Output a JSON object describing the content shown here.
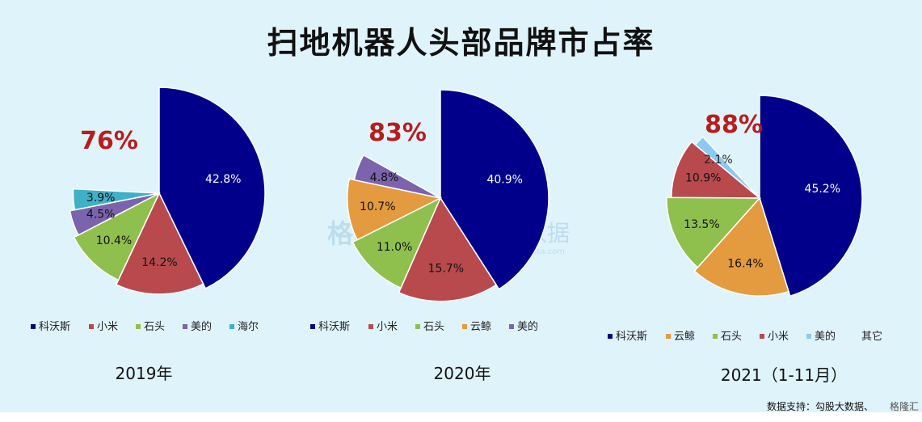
{
  "title": "扫地机器人头部品牌市占率",
  "source_note": "数据支持：勾股大数据、",
  "brand_mark": "格隆汇",
  "watermark": {
    "main": "格隆汇",
    "secondary": "勾股大数据",
    "url": "www.gogudata.com"
  },
  "colors": {
    "dark_blue": "#00008b",
    "red": "#b84a4e",
    "green": "#8fc04e",
    "purple": "#7b63ad",
    "cyan": "#3eb0c8",
    "orange": "#e49a3f",
    "light_blue": "#8ec9f2",
    "highlight": "#b81d1d"
  },
  "chart_data": [
    {
      "type": "pie",
      "title": "2019年",
      "highlight": "76%",
      "slices": [
        {
          "label": "科沃斯",
          "value": 42.8,
          "text": "42.8%",
          "color": "#00008b"
        },
        {
          "label": "小米",
          "value": 14.2,
          "text": "14.2%",
          "color": "#b84a4e"
        },
        {
          "label": "石头",
          "value": 10.4,
          "text": "10.4%",
          "color": "#8fc04e"
        },
        {
          "label": "美的",
          "value": 4.5,
          "text": "4.5%",
          "color": "#7b63ad"
        },
        {
          "label": "海尔",
          "value": 3.9,
          "text": "3.9%",
          "color": "#3eb0c8"
        }
      ],
      "legend": [
        "科沃斯",
        "小米",
        "石头",
        "美的",
        "海尔"
      ]
    },
    {
      "type": "pie",
      "title": "2020年",
      "highlight": "83%",
      "slices": [
        {
          "label": "科沃斯",
          "value": 40.9,
          "text": "40.9%",
          "color": "#00008b"
        },
        {
          "label": "小米",
          "value": 15.7,
          "text": "15.7%",
          "color": "#b84a4e"
        },
        {
          "label": "石头",
          "value": 11.0,
          "text": "11.0%",
          "color": "#8fc04e"
        },
        {
          "label": "云鲸",
          "value": 10.7,
          "text": "10.7%",
          "color": "#e49a3f"
        },
        {
          "label": "美的",
          "value": 4.8,
          "text": "4.8%",
          "color": "#7b63ad"
        }
      ],
      "legend": [
        "科沃斯",
        "小米",
        "石头",
        "云鲸",
        "美的"
      ]
    },
    {
      "type": "pie",
      "title": "2021（1-11月）",
      "highlight": "88%",
      "slices": [
        {
          "label": "科沃斯",
          "value": 45.2,
          "text": "45.2%",
          "color": "#00008b"
        },
        {
          "label": "云鲸",
          "value": 16.4,
          "text": "16.4%",
          "color": "#e49a3f"
        },
        {
          "label": "石头",
          "value": 13.5,
          "text": "13.5%",
          "color": "#8fc04e"
        },
        {
          "label": "小米",
          "value": 10.9,
          "text": "10.9%",
          "color": "#b84a4e"
        },
        {
          "label": "美的",
          "value": 2.1,
          "text": "2.1%",
          "color": "#8ec9f2"
        }
      ],
      "legend": [
        "科沃斯",
        "云鲸",
        "石头",
        "小米",
        "美的",
        "其它"
      ]
    }
  ]
}
